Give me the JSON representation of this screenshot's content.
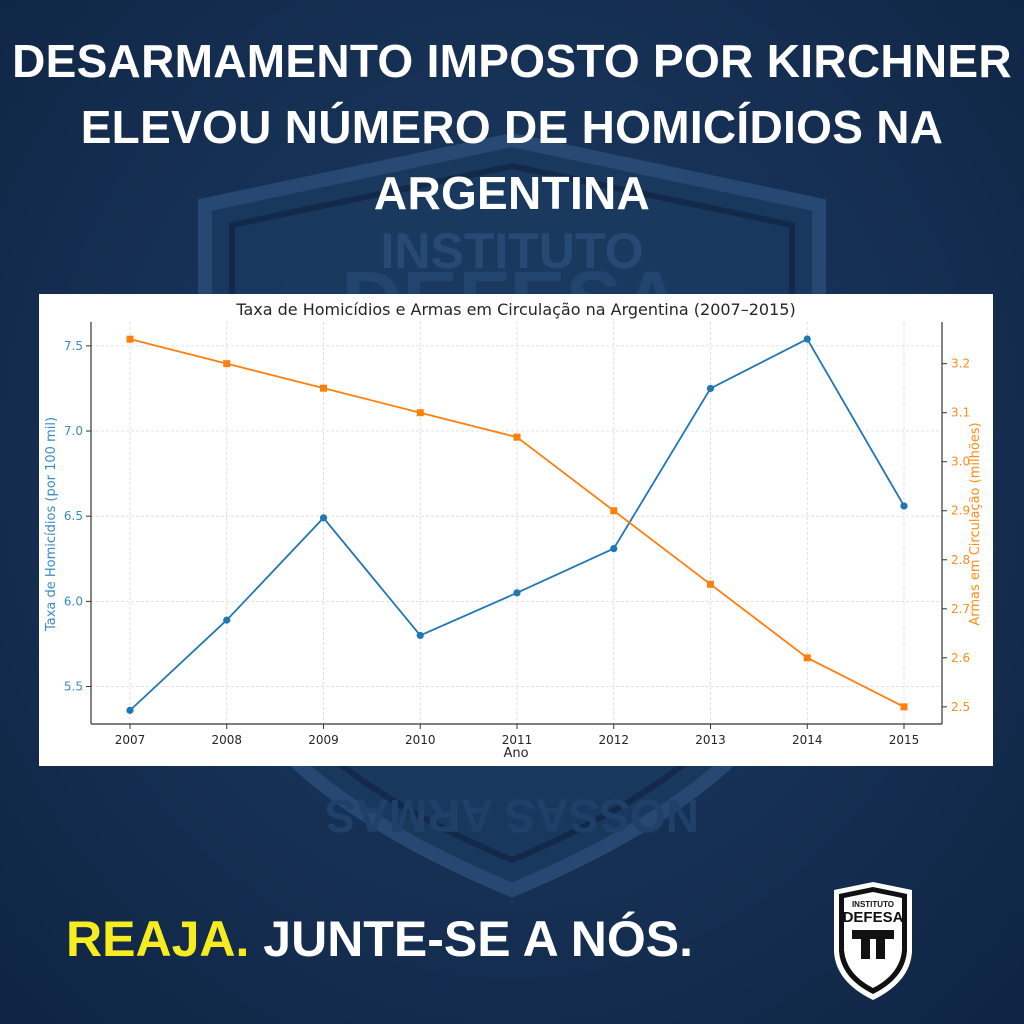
{
  "headline": {
    "line1": "DESARMAMENTO IMPOSTO POR KIRCHNER",
    "line2": "ELEVOU NÚMERO DE HOMICÍDIOS NA",
    "line3": "ARGENTINA"
  },
  "background_emblem": {
    "top_text": "INSTITUTO",
    "main_text": "DEFESA",
    "bottom_text": "NOSSAS ARMAS"
  },
  "chart_data": {
    "type": "line",
    "title": "Taxa de Homicídios e Armas em Circulação na Argentina (2007–2015)",
    "xlabel": "Ano",
    "ylabel_left": "Taxa de Homicídios (por 100 mil)",
    "ylabel_right": "Armas em Circulação (milhões)",
    "x": [
      2007,
      2008,
      2009,
      2010,
      2011,
      2012,
      2013,
      2014,
      2015
    ],
    "x_tick_labels": [
      "2007",
      "2008",
      "2009",
      "2010",
      "2011",
      "2012",
      "2013",
      "2014",
      "2015"
    ],
    "left_ticks": [
      "5.5",
      "6.0",
      "6.5",
      "7.0",
      "7.5"
    ],
    "right_ticks": [
      "2.5",
      "2.6",
      "2.7",
      "2.8",
      "2.9",
      "3.0",
      "3.1",
      "3.2"
    ],
    "ylim_left": [
      5.28,
      7.64
    ],
    "ylim_right": [
      2.465,
      3.285
    ],
    "grid": true,
    "series": [
      {
        "axis": "left",
        "color": "#1f77b4",
        "marker": "circle",
        "values": [
          5.36,
          5.89,
          6.49,
          5.8,
          6.05,
          6.31,
          7.25,
          7.54,
          6.56
        ]
      },
      {
        "axis": "right",
        "color": "#ff7f0e",
        "marker": "square",
        "values": [
          3.25,
          3.2,
          3.15,
          3.1,
          3.05,
          2.9,
          2.75,
          2.6,
          2.5
        ]
      }
    ]
  },
  "call_to_action": {
    "accent": "REAJA.",
    "rest": "JUNTE-SE A NÓS."
  },
  "logo": {
    "top_text": "INSTITUTO",
    "main_text": "DEFESA"
  }
}
